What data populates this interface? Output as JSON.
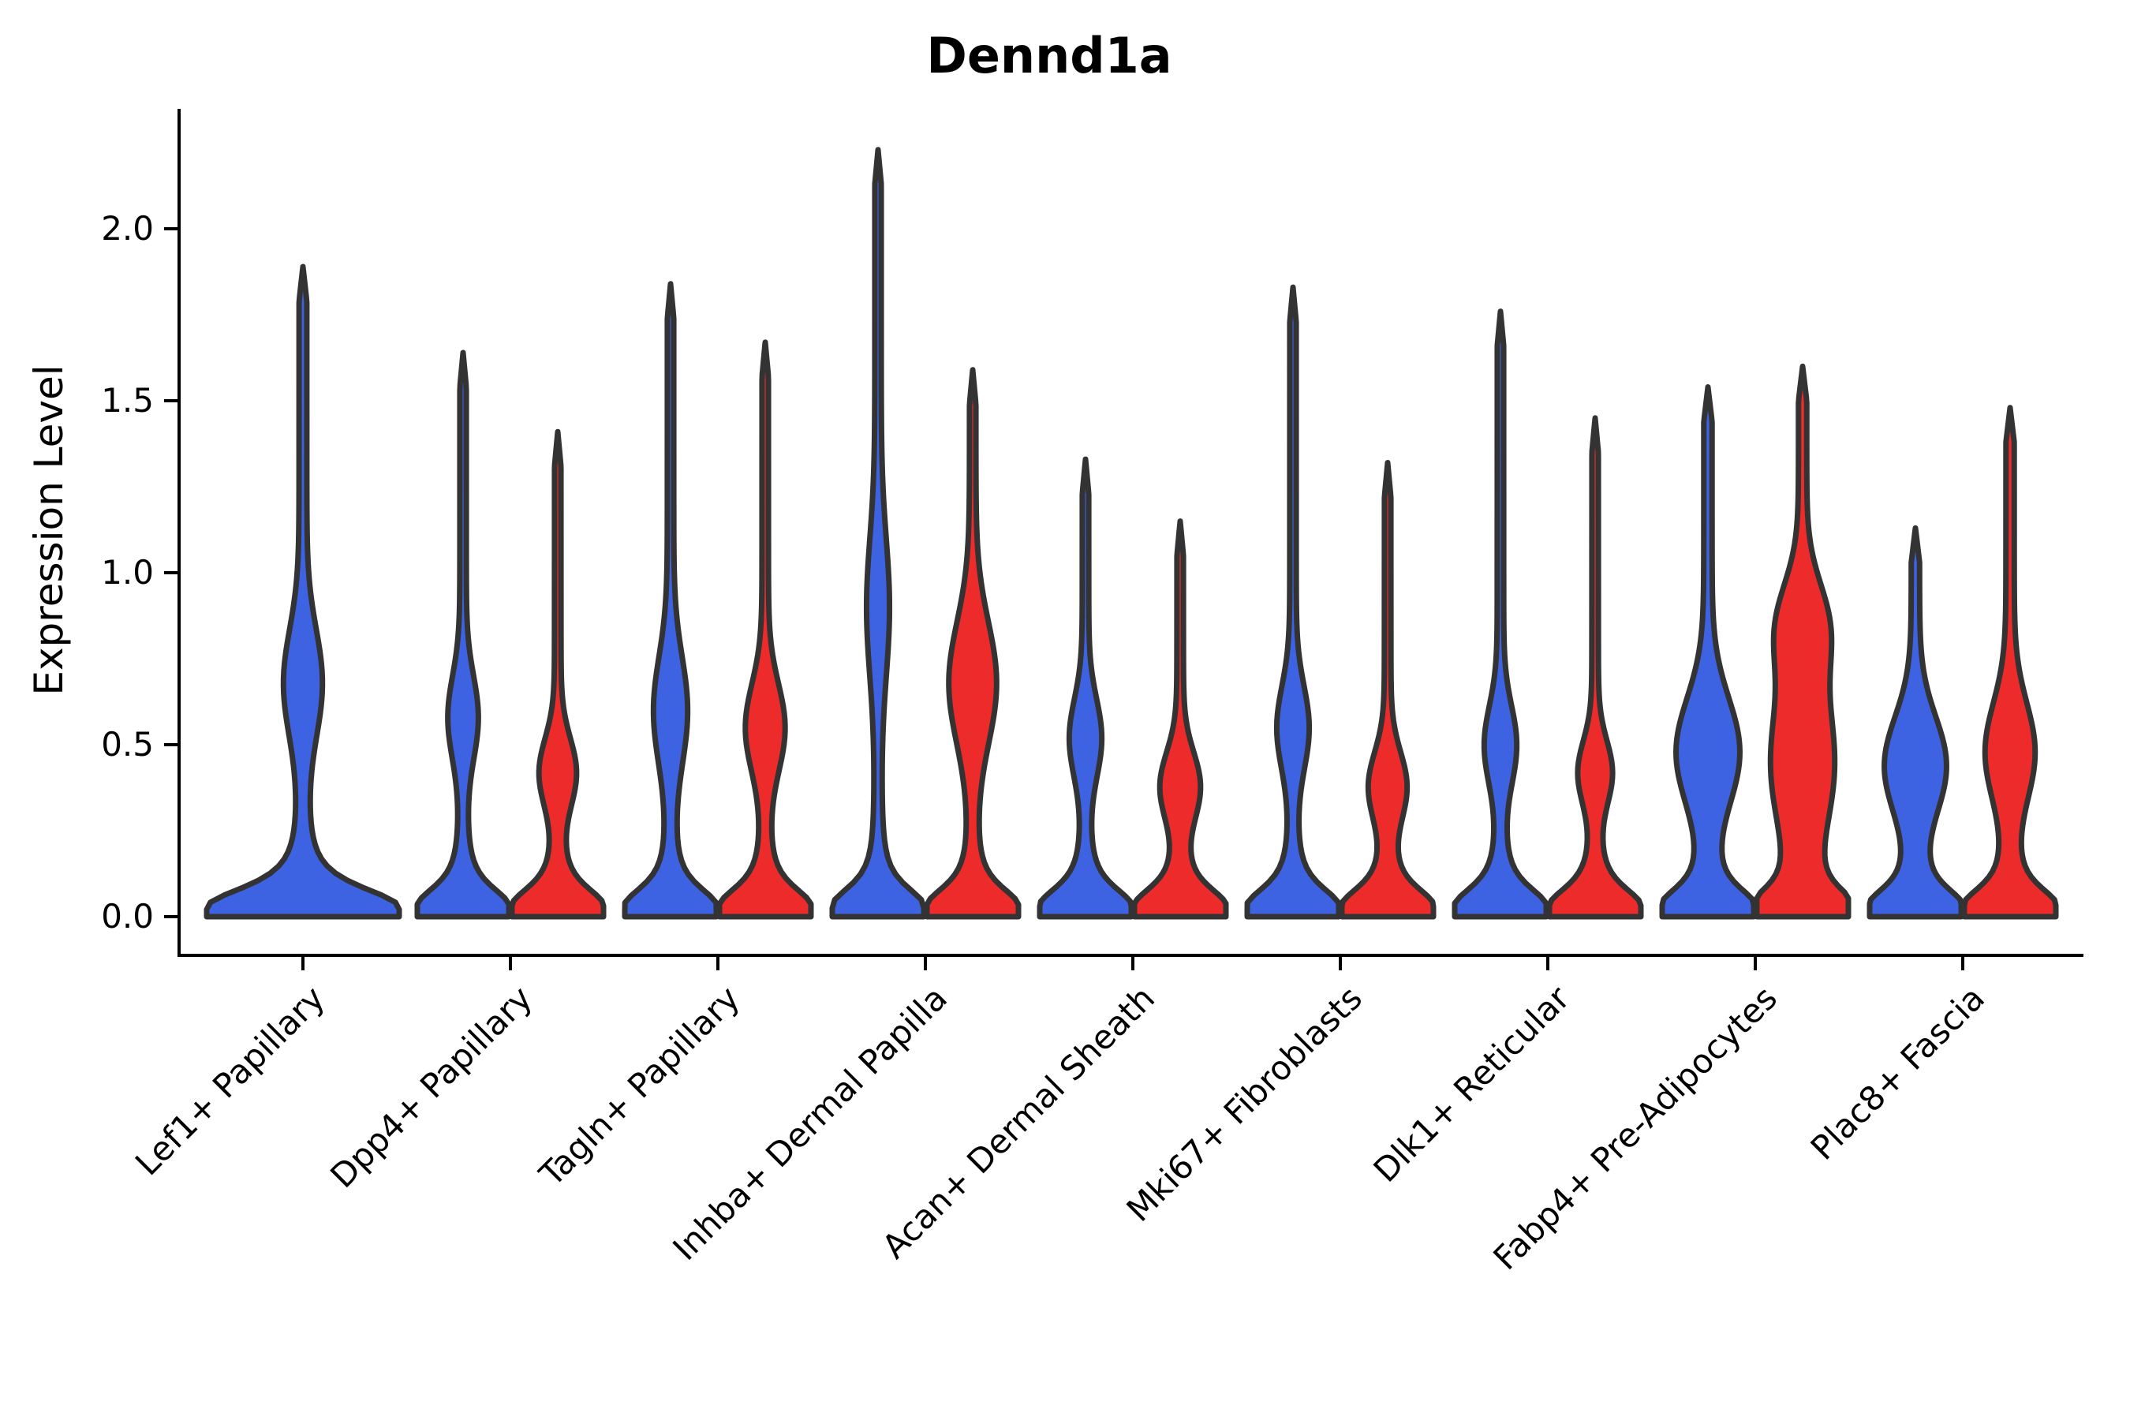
{
  "title": "Dennd1a",
  "y_axis": {
    "label": "Expression Level",
    "ticks": [
      "0.0",
      "0.5",
      "1.0",
      "1.5",
      "2.0"
    ],
    "tick_values": [
      0.0,
      0.5,
      1.0,
      1.5,
      2.0
    ]
  },
  "colors": {
    "blue": "#3D63E3",
    "red": "#EE2B2B",
    "outline": "#333333",
    "axis": "#000000"
  },
  "chart_data": {
    "type": "violin",
    "title": "Dennd1a",
    "xlabel": "",
    "ylabel": "Expression Level",
    "ylim": [
      0.0,
      2.35
    ],
    "grid": false,
    "legend": null,
    "x_tick_rotation": 45,
    "split_colors": [
      "blue",
      "red"
    ],
    "categories": [
      "Lef1+ Papillary",
      "Dpp4+ Papillary",
      "Tagln+ Papillary",
      "Inhba+ Dermal Papilla",
      "Acan+ Dermal Sheath",
      "Mki67+ Fibroblasts",
      "Dlk1+ Reticular",
      "Fabp4+ Pre-Adipocytes",
      "Plac8+ Fascia"
    ],
    "groups": [
      {
        "label": "Lef1+ Papillary",
        "violins": [
          {
            "color_key": "blue",
            "max": 1.89,
            "spike": 0.04,
            "wide": true,
            "bulges": [
              [
                0.68,
                0.22,
                0.16
              ]
            ]
          }
        ]
      },
      {
        "label": "Dpp4+ Papillary",
        "violins": [
          {
            "color_key": "blue",
            "max": 1.64,
            "spike": 0.07,
            "bulges": [
              [
                0.58,
                0.17,
                0.26
              ]
            ]
          },
          {
            "color_key": "red",
            "max": 1.41,
            "spike": 0.07,
            "bulges": [
              [
                0.42,
                0.14,
                0.33
              ]
            ]
          }
        ]
      },
      {
        "label": "Tagln+ Papillary",
        "violins": [
          {
            "color_key": "blue",
            "max": 1.84,
            "spike": 0.07,
            "bulges": [
              [
                0.6,
                0.22,
                0.3
              ]
            ]
          },
          {
            "color_key": "red",
            "max": 1.67,
            "spike": 0.07,
            "bulges": [
              [
                0.55,
                0.18,
                0.36
              ]
            ]
          }
        ]
      },
      {
        "label": "Inhba+ Dermal Papilla",
        "violins": [
          {
            "color_key": "blue",
            "max": 2.23,
            "spike": 0.07,
            "bulges": [
              [
                0.9,
                0.28,
                0.18
              ]
            ]
          },
          {
            "color_key": "red",
            "max": 1.59,
            "spike": 0.07,
            "bulges": [
              [
                0.68,
                0.25,
                0.45
              ]
            ]
          }
        ]
      },
      {
        "label": "Acan+ Dermal Sheath",
        "violins": [
          {
            "color_key": "blue",
            "max": 1.33,
            "spike": 0.07,
            "bulges": [
              [
                0.52,
                0.16,
                0.28
              ]
            ]
          },
          {
            "color_key": "red",
            "max": 1.15,
            "spike": 0.07,
            "bulges": [
              [
                0.38,
                0.14,
                0.36
              ]
            ]
          }
        ]
      },
      {
        "label": "Mki67+ Fibroblasts",
        "violins": [
          {
            "color_key": "blue",
            "max": 1.83,
            "spike": 0.07,
            "bulges": [
              [
                0.55,
                0.17,
                0.28
              ]
            ]
          },
          {
            "color_key": "red",
            "max": 1.32,
            "spike": 0.07,
            "bulges": [
              [
                0.38,
                0.14,
                0.34
              ]
            ]
          }
        ]
      },
      {
        "label": "Dlk1+ Reticular",
        "violins": [
          {
            "color_key": "blue",
            "max": 1.76,
            "spike": 0.07,
            "bulges": [
              [
                0.5,
                0.16,
                0.28
              ]
            ]
          },
          {
            "color_key": "red",
            "max": 1.45,
            "spike": 0.07,
            "bulges": [
              [
                0.42,
                0.13,
                0.3
              ]
            ]
          }
        ]
      },
      {
        "label": "Fabp4+ Pre-Adipocytes",
        "violins": [
          {
            "color_key": "blue",
            "max": 1.54,
            "spike": 0.09,
            "bulges": [
              [
                0.48,
                0.22,
                0.6
              ]
            ]
          },
          {
            "color_key": "red",
            "max": 1.6,
            "spike": 0.09,
            "bulges": [
              [
                0.45,
                0.3,
                0.6
              ],
              [
                0.85,
                0.18,
                0.42
              ]
            ]
          }
        ]
      },
      {
        "label": "Plac8+ Fascia",
        "violins": [
          {
            "color_key": "blue",
            "max": 1.13,
            "spike": 0.09,
            "bulges": [
              [
                0.44,
                0.2,
                0.58
              ]
            ]
          },
          {
            "color_key": "red",
            "max": 1.48,
            "spike": 0.09,
            "bulges": [
              [
                0.48,
                0.2,
                0.45
              ]
            ]
          }
        ]
      }
    ]
  }
}
